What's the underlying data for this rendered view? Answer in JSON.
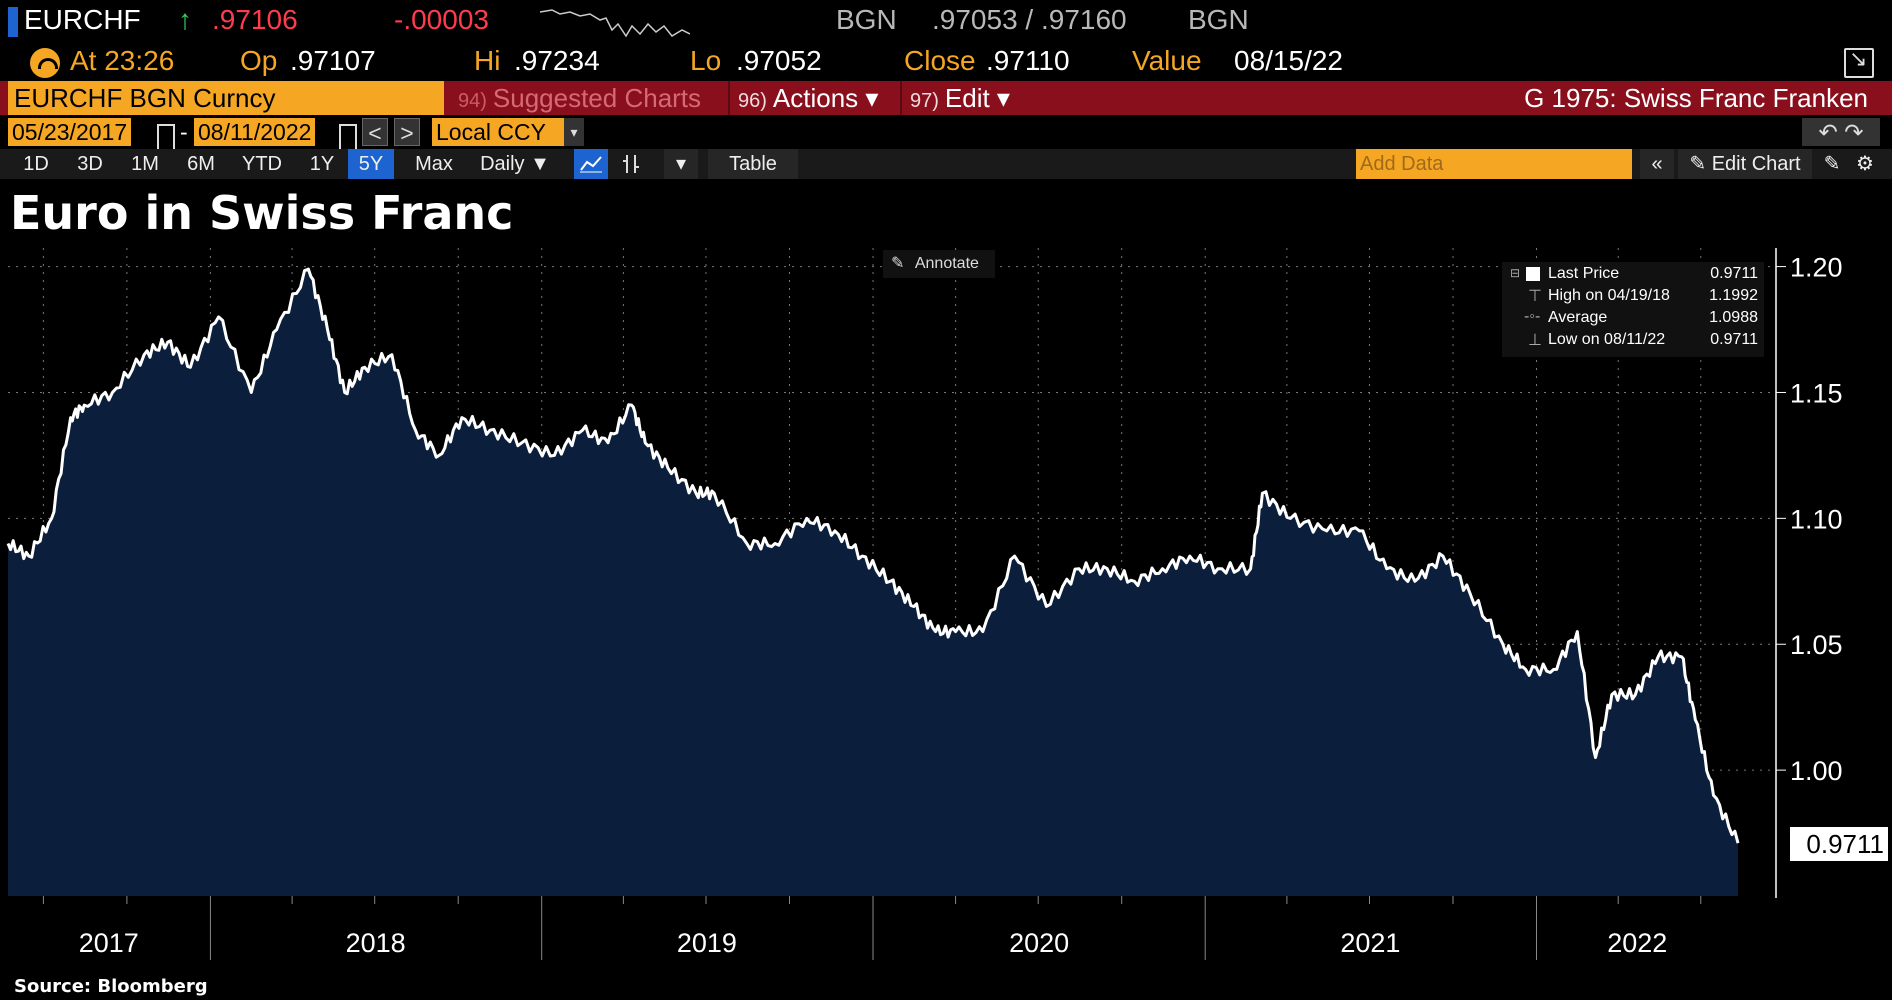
{
  "quote": {
    "ticker": "EURCHF",
    "arrow": "↑",
    "last": ".97106",
    "change": "-.00003",
    "bid_src": "BGN",
    "bid_ask": ".97053 / .97160",
    "ask_src": "BGN"
  },
  "stats": {
    "time": "At 23:26",
    "open_label": "Op",
    "open": ".97107",
    "high_label": "Hi",
    "high": ".97234",
    "low_label": "Lo",
    "low": ".97052",
    "close_label": "Close",
    "close": ".97110",
    "value_label": "Value",
    "value": "08/15/22"
  },
  "menu": {
    "security": "EURCHF BGN Curncy",
    "suggested_num": "94)",
    "suggested": "Suggested Charts",
    "actions_num": "96)",
    "actions": "Actions ▾",
    "edit_num": "97)",
    "edit": "Edit ▾",
    "function_title": "G 1975: Swiss Franc Franken"
  },
  "range": {
    "start": "05/23/2017",
    "sep": "-",
    "end": "08/11/2022",
    "prev": "<",
    "next": ">",
    "currency": "Local CCY",
    "dropdown": "▾",
    "undo_redo": "↶  ↷"
  },
  "toolbar": {
    "periods": [
      "1D",
      "3D",
      "1M",
      "6M",
      "YTD",
      "1Y",
      "5Y",
      "Max"
    ],
    "active_period": "5Y",
    "frequency": "Daily ▼",
    "table": "Table",
    "add_data_placeholder": "Add Data",
    "collapse": "«",
    "edit_chart": "✎ Edit Chart"
  },
  "colors": {
    "accent_orange": "#f5a623",
    "menu_red": "#8a0f1c",
    "area_fill": "#0b1f3d",
    "line": "#ffffff"
  },
  "annotate_label": "Annotate",
  "source": "Source: Bloomberg",
  "legend": [
    {
      "label": "Last Price",
      "value": "0.9711"
    },
    {
      "label": "High on 04/19/18",
      "value": "1.1992"
    },
    {
      "label": "Average",
      "value": "1.0988"
    },
    {
      "label": "Low on 08/11/22",
      "value": "0.9711"
    }
  ],
  "last_tag": "0.9711",
  "chart_data": {
    "type": "area",
    "title": "Euro in Swiss Franc",
    "xlabel": "",
    "ylabel": "",
    "x_ticks": [
      "2017",
      "2018",
      "2019",
      "2020",
      "2021",
      "2022"
    ],
    "y_ticks": [
      "1.20",
      "1.15",
      "1.10",
      "1.05",
      "1.00"
    ],
    "ylim": [
      0.95,
      1.205
    ],
    "xlim": [
      "2017-05-23",
      "2022-08-11"
    ],
    "grid": true,
    "legend_position": "top-right",
    "series": [
      {
        "name": "Last Price",
        "x": [
          "2017-05-23",
          "2017-06-15",
          "2017-07-10",
          "2017-07-31",
          "2017-08-15",
          "2017-09-15",
          "2017-10-20",
          "2017-11-15",
          "2017-12-10",
          "2018-01-10",
          "2018-02-15",
          "2018-03-15",
          "2018-04-19",
          "2018-05-10",
          "2018-05-29",
          "2018-06-20",
          "2018-07-20",
          "2018-08-15",
          "2018-09-10",
          "2018-10-05",
          "2018-11-05",
          "2018-12-10",
          "2019-01-15",
          "2019-02-15",
          "2019-03-15",
          "2019-04-10",
          "2019-04-25",
          "2019-05-20",
          "2019-06-20",
          "2019-07-10",
          "2019-08-15",
          "2019-09-15",
          "2019-10-20",
          "2019-11-20",
          "2019-12-20",
          "2020-01-20",
          "2020-02-15",
          "2020-03-10",
          "2020-04-01",
          "2020-05-01",
          "2020-06-05",
          "2020-07-10",
          "2020-08-15",
          "2020-09-15",
          "2020-10-15",
          "2020-11-15",
          "2020-12-15",
          "2021-01-15",
          "2021-02-20",
          "2021-03-05",
          "2021-04-05",
          "2021-05-15",
          "2021-06-20",
          "2021-07-20",
          "2021-08-20",
          "2021-09-20",
          "2021-10-20",
          "2021-11-25",
          "2021-12-20",
          "2022-01-20",
          "2022-02-15",
          "2022-03-07",
          "2022-03-25",
          "2022-04-20",
          "2022-05-15",
          "2022-06-10",
          "2022-06-25",
          "2022-07-15",
          "2022-08-11"
        ],
        "y": [
          1.09,
          1.085,
          1.1,
          1.14,
          1.145,
          1.15,
          1.165,
          1.17,
          1.16,
          1.18,
          1.15,
          1.175,
          1.199,
          1.175,
          1.15,
          1.16,
          1.165,
          1.135,
          1.125,
          1.14,
          1.135,
          1.13,
          1.125,
          1.135,
          1.13,
          1.145,
          1.13,
          1.12,
          1.11,
          1.11,
          1.09,
          1.09,
          1.1,
          1.095,
          1.085,
          1.075,
          1.065,
          1.055,
          1.055,
          1.055,
          1.085,
          1.065,
          1.08,
          1.08,
          1.075,
          1.08,
          1.085,
          1.08,
          1.08,
          1.11,
          1.1,
          1.095,
          1.095,
          1.08,
          1.075,
          1.085,
          1.07,
          1.05,
          1.04,
          1.04,
          1.055,
          1.005,
          1.03,
          1.03,
          1.045,
          1.045,
          1.02,
          0.99,
          0.971
        ]
      }
    ]
  }
}
